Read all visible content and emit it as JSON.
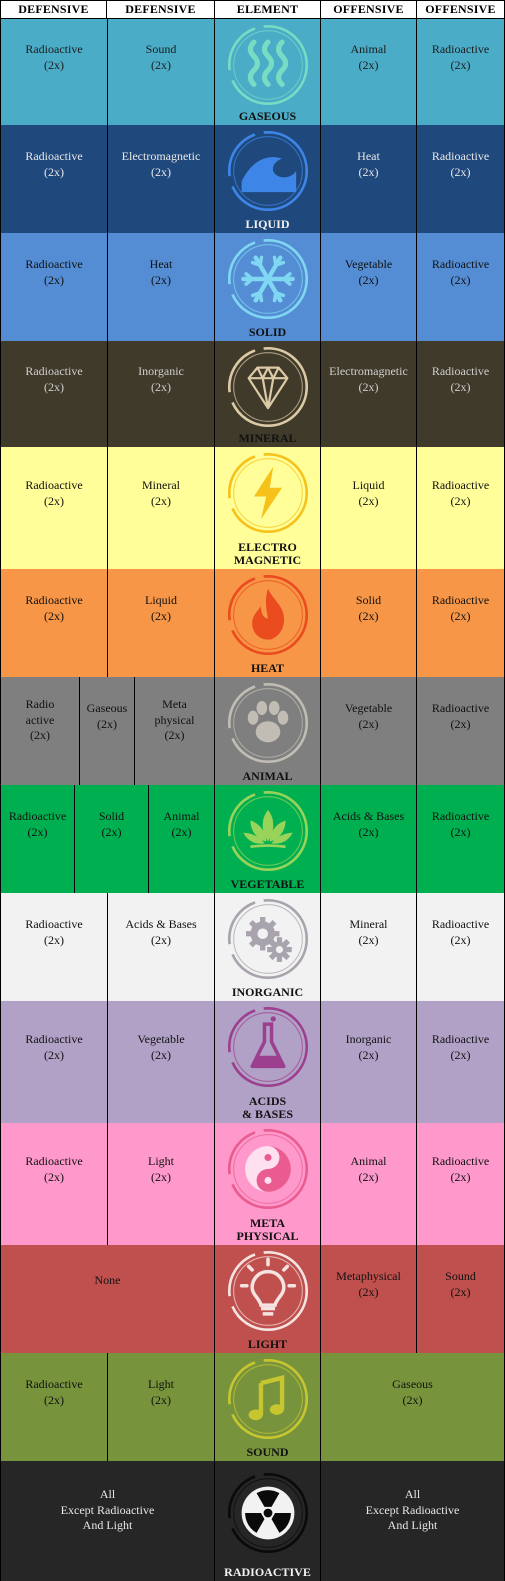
{
  "headers": [
    "DEFENSIVE",
    "DEFENSIVE",
    "ELEMENT",
    "OFFENSIVE",
    "OFFENSIVE"
  ],
  "rows": [
    {
      "element": "GASEOUS",
      "icon": "steam-icon",
      "bg": "#4aacc6",
      "text": "#1c1c1c",
      "accent": "#78dbc4",
      "defensive": [
        "Radioactive\n(2x)",
        "Sound\n(2x)"
      ],
      "offensive": [
        "Animal\n(2x)",
        "Radioactive\n(2x)"
      ]
    },
    {
      "element": "LIQUID",
      "icon": "wave-icon",
      "bg": "#1f487c",
      "text": "#e8e8e8",
      "accent": "#3d86e8",
      "defensive": [
        "Radioactive\n(2x)",
        "Electromagnetic\n(2x)"
      ],
      "offensive": [
        "Heat\n(2x)",
        "Radioactive\n(2x)"
      ]
    },
    {
      "element": "SOLID",
      "icon": "snowflake-icon",
      "bg": "#548dd4",
      "text": "#111111",
      "accent": "#7fd7f2",
      "defensive": [
        "Radioactive\n(2x)",
        "Heat\n(2x)"
      ],
      "offensive": [
        "Vegetable\n(2x)",
        "Radioactive\n(2x)"
      ]
    },
    {
      "element": "MINERAL",
      "icon": "diamond-icon",
      "bg": "#403a2a",
      "text": "#cfcfcf",
      "accent": "#dcc9a6",
      "defensive": [
        "Radioactive\n(2x)",
        "Inorganic\n(2x)"
      ],
      "offensive": [
        "Electromagnetic\n(2x)",
        "Radioactive\n(2x)"
      ]
    },
    {
      "element": "ELECTRO\nMAGNETIC",
      "icon": "lightning-bolt-icon",
      "bg": "#fffe99",
      "text": "#111111",
      "accent": "#f6c21a",
      "defensive": [
        "Radioactive\n(2x)",
        "Mineral\n(2x)"
      ],
      "offensive": [
        "Liquid\n(2x)",
        "Radioactive\n(2x)"
      ]
    },
    {
      "element": "HEAT",
      "icon": "flame-icon",
      "bg": "#f79646",
      "text": "#111111",
      "accent": "#ea4b1f",
      "defensive": [
        "Radioactive\n(2x)",
        "Liquid\n(2x)"
      ],
      "offensive": [
        "Solid\n(2x)",
        "Radioactive\n(2x)"
      ]
    },
    {
      "element": "ANIMAL",
      "icon": "paw-print-icon",
      "bg": "#7f7f7f",
      "text": "#111111",
      "accent": "#c2bdb4",
      "defensive": [
        "Radio\nactive\n(2x)",
        "Gaseous\n(2x)",
        "Meta\nphysical\n(2x)"
      ],
      "offensive": [
        "Vegetable\n(2x)",
        "Radioactive\n(2x)"
      ]
    },
    {
      "element": "VEGETABLE",
      "icon": "lotus-icon",
      "bg": "#00b050",
      "text": "#111111",
      "accent": "#9ad35a",
      "defensive": [
        "Radioactive\n(2x)",
        "Solid\n(2x)",
        "Animal\n(2x)"
      ],
      "offensive": [
        "Acids & Bases\n(2x)",
        "Radioactive\n(2x)"
      ]
    },
    {
      "element": "INORGANIC",
      "icon": "gears-icon",
      "bg": "#f2f2f2",
      "text": "#111111",
      "accent": "#a9a3ad",
      "defensive": [
        "Radioactive\n(2x)",
        "Acids & Bases\n(2x)"
      ],
      "offensive": [
        "Mineral\n(2x)",
        "Radioactive\n(2x)"
      ]
    },
    {
      "element": "ACIDS\n& BASES",
      "icon": "flask-icon",
      "bg": "#b2a1c7",
      "text": "#111111",
      "accent": "#9c3f8f",
      "defensive": [
        "Radioactive\n(2x)",
        "Vegetable\n(2x)"
      ],
      "offensive": [
        "Inorganic\n(2x)",
        "Radioactive\n(2x)"
      ]
    },
    {
      "element": "META\nPHYSICAL",
      "icon": "yin-yang-icon",
      "bg": "#ff99cc",
      "text": "#111111",
      "accent": "#ea5c8f",
      "defensive": [
        "Radioactive\n(2x)",
        "Light\n(2x)"
      ],
      "offensive": [
        "Animal\n(2x)",
        "Radioactive\n(2x)"
      ]
    },
    {
      "element": "LIGHT",
      "icon": "lightbulb-icon",
      "bg": "#c0504d",
      "text": "#111111",
      "accent": "#f4e3e0",
      "defensive": [
        "None"
      ],
      "offensive": [
        "Metaphysical\n(2x)",
        "Sound\n(2x)"
      ]
    },
    {
      "element": "SOUND",
      "icon": "music-note-icon",
      "bg": "#77933c",
      "text": "#111111",
      "accent": "#c7c630",
      "defensive": [
        "Radioactive\n(2x)",
        "Light\n(2x)"
      ],
      "offensive": [
        "Gaseous\n(2x)"
      ]
    },
    {
      "element": "RADIOACTIVE",
      "icon": "radiation-icon",
      "bg": "#262626",
      "text": "#e8e8e8",
      "accent": "#0a0a0a",
      "defensive": [
        "All\nExcept Radioactive\nAnd Light"
      ],
      "offensive": [
        "All\nExcept Radioactive\nAnd Light"
      ]
    }
  ]
}
